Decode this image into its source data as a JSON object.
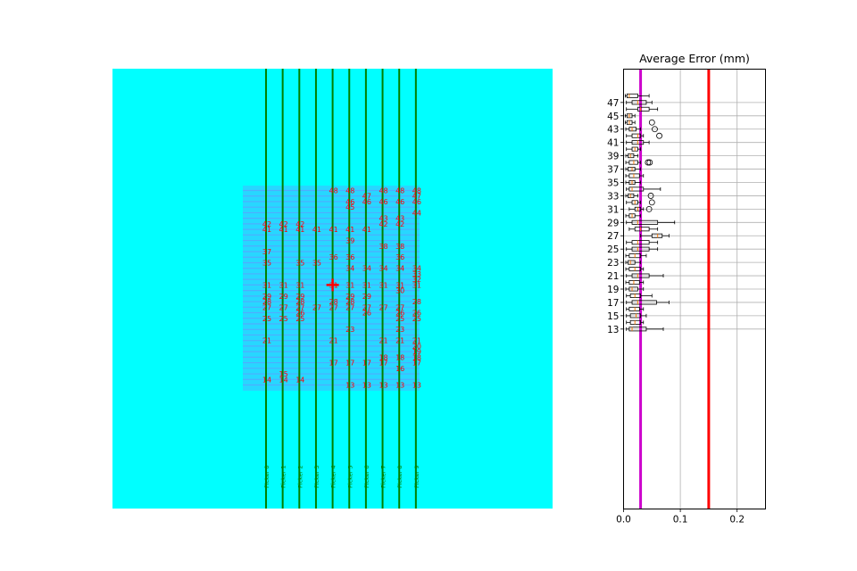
{
  "chart_data": [
    {
      "type": "heatmap",
      "title": "",
      "xlabel": "",
      "ylabel": "",
      "background_color": "#00ffff",
      "grid_color": "#6f8cff",
      "line_color": "#008000",
      "label_color": "#ff0000",
      "picker_labels": [
        "Picker 0",
        "Picker 1",
        "Picker 2",
        "Picker 3",
        "Picker 4",
        "Picker 5",
        "Picker 6",
        "Picker 7",
        "Picker 8",
        "Picker 9"
      ],
      "marker": {
        "symbol": "+",
        "color": "#ff0000",
        "column": 4,
        "row": 31
      },
      "points": [
        {
          "col": 4,
          "row": 48,
          "label": "48"
        },
        {
          "col": 5,
          "row": 48,
          "label": "48"
        },
        {
          "col": 7,
          "row": 48,
          "label": "48"
        },
        {
          "col": 8,
          "row": 48,
          "label": "48"
        },
        {
          "col": 9,
          "row": 48,
          "label": "48"
        },
        {
          "col": 6,
          "row": 47,
          "label": "47"
        },
        {
          "col": 9,
          "row": 47,
          "label": "47"
        },
        {
          "col": 5,
          "row": 46,
          "label": "46"
        },
        {
          "col": 6,
          "row": 46,
          "label": "46"
        },
        {
          "col": 7,
          "row": 46,
          "label": "46"
        },
        {
          "col": 8,
          "row": 46,
          "label": "46"
        },
        {
          "col": 9,
          "row": 46,
          "label": "46"
        },
        {
          "col": 5,
          "row": 45,
          "label": "45"
        },
        {
          "col": 9,
          "row": 44,
          "label": "44"
        },
        {
          "col": 7,
          "row": 43,
          "label": "43"
        },
        {
          "col": 8,
          "row": 43,
          "label": "43"
        },
        {
          "col": 0,
          "row": 42,
          "label": "42"
        },
        {
          "col": 1,
          "row": 42,
          "label": "42"
        },
        {
          "col": 2,
          "row": 42,
          "label": "42"
        },
        {
          "col": 7,
          "row": 42,
          "label": "42"
        },
        {
          "col": 8,
          "row": 42,
          "label": "42"
        },
        {
          "col": 0,
          "row": 41,
          "label": "41"
        },
        {
          "col": 1,
          "row": 41,
          "label": "41"
        },
        {
          "col": 2,
          "row": 41,
          "label": "41"
        },
        {
          "col": 3,
          "row": 41,
          "label": "41"
        },
        {
          "col": 4,
          "row": 41,
          "label": "41"
        },
        {
          "col": 5,
          "row": 41,
          "label": "41"
        },
        {
          "col": 6,
          "row": 41,
          "label": "41"
        },
        {
          "col": 5,
          "row": 39,
          "label": "39"
        },
        {
          "col": 7,
          "row": 38,
          "label": "38"
        },
        {
          "col": 8,
          "row": 38,
          "label": "38"
        },
        {
          "col": 0,
          "row": 37,
          "label": "37"
        },
        {
          "col": 4,
          "row": 36,
          "label": "36"
        },
        {
          "col": 5,
          "row": 36,
          "label": "36"
        },
        {
          "col": 8,
          "row": 36,
          "label": "36"
        },
        {
          "col": 0,
          "row": 35,
          "label": "35"
        },
        {
          "col": 2,
          "row": 35,
          "label": "35"
        },
        {
          "col": 3,
          "row": 35,
          "label": "35"
        },
        {
          "col": 5,
          "row": 34,
          "label": "34"
        },
        {
          "col": 6,
          "row": 34,
          "label": "34"
        },
        {
          "col": 7,
          "row": 34,
          "label": "34"
        },
        {
          "col": 8,
          "row": 34,
          "label": "34"
        },
        {
          "col": 9,
          "row": 34,
          "label": "34"
        },
        {
          "col": 9,
          "row": 33,
          "label": "33"
        },
        {
          "col": 9,
          "row": 32,
          "label": "32"
        },
        {
          "col": 0,
          "row": 31,
          "label": "31"
        },
        {
          "col": 1,
          "row": 31,
          "label": "31"
        },
        {
          "col": 2,
          "row": 31,
          "label": "31"
        },
        {
          "col": 4,
          "row": 31,
          "label": "31"
        },
        {
          "col": 5,
          "row": 31,
          "label": "31"
        },
        {
          "col": 6,
          "row": 31,
          "label": "31"
        },
        {
          "col": 7,
          "row": 31,
          "label": "31"
        },
        {
          "col": 8,
          "row": 31,
          "label": "31"
        },
        {
          "col": 9,
          "row": 31,
          "label": "31"
        },
        {
          "col": 8,
          "row": 30,
          "label": "30"
        },
        {
          "col": 0,
          "row": 29,
          "label": "29"
        },
        {
          "col": 1,
          "row": 29,
          "label": "29"
        },
        {
          "col": 2,
          "row": 29,
          "label": "29"
        },
        {
          "col": 5,
          "row": 29,
          "label": "29"
        },
        {
          "col": 6,
          "row": 29,
          "label": "29"
        },
        {
          "col": 0,
          "row": 28,
          "label": "28"
        },
        {
          "col": 2,
          "row": 28,
          "label": "28"
        },
        {
          "col": 4,
          "row": 28,
          "label": "28"
        },
        {
          "col": 5,
          "row": 28,
          "label": "28"
        },
        {
          "col": 9,
          "row": 28,
          "label": "28"
        },
        {
          "col": 0,
          "row": 27,
          "label": "27"
        },
        {
          "col": 1,
          "row": 27,
          "label": "27"
        },
        {
          "col": 2,
          "row": 27,
          "label": "27"
        },
        {
          "col": 3,
          "row": 27,
          "label": "27"
        },
        {
          "col": 4,
          "row": 27,
          "label": "27"
        },
        {
          "col": 5,
          "row": 27,
          "label": "27"
        },
        {
          "col": 6,
          "row": 27,
          "label": "27"
        },
        {
          "col": 7,
          "row": 27,
          "label": "27"
        },
        {
          "col": 8,
          "row": 27,
          "label": "27"
        },
        {
          "col": 2,
          "row": 26,
          "label": "26"
        },
        {
          "col": 6,
          "row": 26,
          "label": "26"
        },
        {
          "col": 8,
          "row": 26,
          "label": "26"
        },
        {
          "col": 9,
          "row": 26,
          "label": "26"
        },
        {
          "col": 0,
          "row": 25,
          "label": "25"
        },
        {
          "col": 1,
          "row": 25,
          "label": "25"
        },
        {
          "col": 2,
          "row": 25,
          "label": "25"
        },
        {
          "col": 8,
          "row": 25,
          "label": "25"
        },
        {
          "col": 9,
          "row": 25,
          "label": "25"
        },
        {
          "col": 5,
          "row": 23,
          "label": "23"
        },
        {
          "col": 8,
          "row": 23,
          "label": "23"
        },
        {
          "col": 0,
          "row": 21,
          "label": "21"
        },
        {
          "col": 4,
          "row": 21,
          "label": "21"
        },
        {
          "col": 7,
          "row": 21,
          "label": "21"
        },
        {
          "col": 8,
          "row": 21,
          "label": "21"
        },
        {
          "col": 9,
          "row": 21,
          "label": "21"
        },
        {
          "col": 9,
          "row": 20,
          "label": "20"
        },
        {
          "col": 9,
          "row": 19,
          "label": "19"
        },
        {
          "col": 7,
          "row": 18,
          "label": "18"
        },
        {
          "col": 8,
          "row": 18,
          "label": "18"
        },
        {
          "col": 9,
          "row": 18,
          "label": "18"
        },
        {
          "col": 4,
          "row": 17,
          "label": "17"
        },
        {
          "col": 5,
          "row": 17,
          "label": "17"
        },
        {
          "col": 6,
          "row": 17,
          "label": "17"
        },
        {
          "col": 7,
          "row": 17,
          "label": "17"
        },
        {
          "col": 9,
          "row": 17,
          "label": "17"
        },
        {
          "col": 8,
          "row": 16,
          "label": "16"
        },
        {
          "col": 1,
          "row": 15,
          "label": "15"
        },
        {
          "col": 0,
          "row": 14,
          "label": "14"
        },
        {
          "col": 1,
          "row": 14,
          "label": "14"
        },
        {
          "col": 2,
          "row": 14,
          "label": "14"
        },
        {
          "col": 5,
          "row": 13,
          "label": "13"
        },
        {
          "col": 6,
          "row": 13,
          "label": "13"
        },
        {
          "col": 7,
          "row": 13,
          "label": "13"
        },
        {
          "col": 8,
          "row": 13,
          "label": "13"
        },
        {
          "col": 9,
          "row": 13,
          "label": "13"
        }
      ]
    },
    {
      "type": "boxplot",
      "orientation": "horizontal",
      "title": "Average Error (mm)",
      "xlabel": "",
      "ylabel": "",
      "xlim": [
        0,
        0.25
      ],
      "xticks": [
        0,
        0.1,
        0.2
      ],
      "xtick_labels": [
        "0.0",
        "0.1",
        "0.2"
      ],
      "ylim": [
        -14,
        52
      ],
      "yticks": [
        13,
        15,
        17,
        19,
        21,
        23,
        25,
        27,
        29,
        31,
        33,
        35,
        37,
        39,
        41,
        43,
        45,
        47
      ],
      "ytick_labels": [
        "13",
        "15",
        "17",
        "19",
        "21",
        "23",
        "25",
        "27",
        "29",
        "31",
        "33",
        "35",
        "37",
        "39",
        "41",
        "43",
        "45",
        "47"
      ],
      "grid": true,
      "reference_lines": [
        {
          "x": 0.03,
          "color": "#cc00cc"
        },
        {
          "x": 0.15,
          "color": "#ff0000"
        }
      ],
      "boxes": [
        {
          "y": 13,
          "whislo": 0.005,
          "q1": 0.01,
          "med": 0.015,
          "q3": 0.04,
          "whishi": 0.07,
          "fliers": []
        },
        {
          "y": 14,
          "whislo": 0.005,
          "q1": 0.012,
          "med": 0.02,
          "q3": 0.03,
          "whishi": 0.035,
          "fliers": []
        },
        {
          "y": 15,
          "whislo": 0.005,
          "q1": 0.012,
          "med": 0.022,
          "q3": 0.03,
          "whishi": 0.04,
          "fliers": []
        },
        {
          "y": 16,
          "whislo": 0.005,
          "q1": 0.01,
          "med": 0.02,
          "q3": 0.028,
          "whishi": 0.035,
          "fliers": []
        },
        {
          "y": 17,
          "whislo": 0.005,
          "q1": 0.015,
          "med": 0.025,
          "q3": 0.058,
          "whishi": 0.08,
          "fliers": []
        },
        {
          "y": 18,
          "whislo": 0.005,
          "q1": 0.012,
          "med": 0.02,
          "q3": 0.03,
          "whishi": 0.05,
          "fliers": []
        },
        {
          "y": 19,
          "whislo": 0.004,
          "q1": 0.01,
          "med": 0.015,
          "q3": 0.025,
          "whishi": 0.035,
          "fliers": []
        },
        {
          "y": 20,
          "whislo": 0.004,
          "q1": 0.01,
          "med": 0.018,
          "q3": 0.028,
          "whishi": 0.035,
          "fliers": []
        },
        {
          "y": 21,
          "whislo": 0.005,
          "q1": 0.015,
          "med": 0.025,
          "q3": 0.045,
          "whishi": 0.07,
          "fliers": []
        },
        {
          "y": 22,
          "whislo": 0.004,
          "q1": 0.01,
          "med": 0.02,
          "q3": 0.03,
          "whishi": 0.035,
          "fliers": []
        },
        {
          "y": 23,
          "whislo": 0.004,
          "q1": 0.008,
          "med": 0.012,
          "q3": 0.02,
          "whishi": 0.03,
          "fliers": []
        },
        {
          "y": 24,
          "whislo": 0.004,
          "q1": 0.01,
          "med": 0.02,
          "q3": 0.03,
          "whishi": 0.04,
          "fliers": []
        },
        {
          "y": 25,
          "whislo": 0.005,
          "q1": 0.015,
          "med": 0.025,
          "q3": 0.045,
          "whishi": 0.06,
          "fliers": []
        },
        {
          "y": 26,
          "whislo": 0.005,
          "q1": 0.015,
          "med": 0.025,
          "q3": 0.045,
          "whishi": 0.06,
          "fliers": []
        },
        {
          "y": 27,
          "whislo": 0.03,
          "q1": 0.05,
          "med": 0.06,
          "q3": 0.068,
          "whishi": 0.08,
          "fliers": []
        },
        {
          "y": 28,
          "whislo": 0.01,
          "q1": 0.02,
          "med": 0.03,
          "q3": 0.045,
          "whishi": 0.06,
          "fliers": []
        },
        {
          "y": 29,
          "whislo": 0.005,
          "q1": 0.015,
          "med": 0.025,
          "q3": 0.06,
          "whishi": 0.09,
          "fliers": []
        },
        {
          "y": 30,
          "whislo": 0.004,
          "q1": 0.01,
          "med": 0.015,
          "q3": 0.02,
          "whishi": 0.03,
          "fliers": []
        },
        {
          "y": 31,
          "whislo": 0.01,
          "q1": 0.02,
          "med": 0.025,
          "q3": 0.03,
          "whishi": 0.035,
          "fliers": [
            0.045
          ]
        },
        {
          "y": 32,
          "whislo": 0.005,
          "q1": 0.015,
          "med": 0.02,
          "q3": 0.025,
          "whishi": 0.03,
          "fliers": [
            0.05
          ]
        },
        {
          "y": 33,
          "whislo": 0.004,
          "q1": 0.008,
          "med": 0.012,
          "q3": 0.018,
          "whishi": 0.025,
          "fliers": [
            0.048
          ]
        },
        {
          "y": 34,
          "whislo": 0.005,
          "q1": 0.01,
          "med": 0.015,
          "q3": 0.035,
          "whishi": 0.065,
          "fliers": []
        },
        {
          "y": 35,
          "whislo": 0.004,
          "q1": 0.01,
          "med": 0.015,
          "q3": 0.02,
          "whishi": 0.03,
          "fliers": []
        },
        {
          "y": 36,
          "whislo": 0.004,
          "q1": 0.01,
          "med": 0.018,
          "q3": 0.028,
          "whishi": 0.035,
          "fliers": []
        },
        {
          "y": 37,
          "whislo": 0.004,
          "q1": 0.008,
          "med": 0.015,
          "q3": 0.02,
          "whishi": 0.03,
          "fliers": []
        },
        {
          "y": 38,
          "whislo": 0.004,
          "q1": 0.01,
          "med": 0.018,
          "q3": 0.025,
          "whishi": 0.03,
          "fliers": [
            0.043,
            0.046
          ]
        },
        {
          "y": 39,
          "whislo": 0.004,
          "q1": 0.008,
          "med": 0.012,
          "q3": 0.018,
          "whishi": 0.025,
          "fliers": []
        },
        {
          "y": 40,
          "whislo": 0.005,
          "q1": 0.015,
          "med": 0.02,
          "q3": 0.025,
          "whishi": 0.03,
          "fliers": []
        },
        {
          "y": 41,
          "whislo": 0.005,
          "q1": 0.015,
          "med": 0.025,
          "q3": 0.035,
          "whishi": 0.045,
          "fliers": []
        },
        {
          "y": 42,
          "whislo": 0.005,
          "q1": 0.015,
          "med": 0.025,
          "q3": 0.03,
          "whishi": 0.035,
          "fliers": [
            0.063
          ]
        },
        {
          "y": 43,
          "whislo": 0.004,
          "q1": 0.01,
          "med": 0.015,
          "q3": 0.022,
          "whishi": 0.03,
          "fliers": [
            0.055
          ]
        },
        {
          "y": 44,
          "whislo": 0.003,
          "q1": 0.006,
          "med": 0.01,
          "q3": 0.015,
          "whishi": 0.02,
          "fliers": [
            0.05
          ]
        },
        {
          "y": 45,
          "whislo": 0.003,
          "q1": 0.006,
          "med": 0.01,
          "q3": 0.015,
          "whishi": 0.02,
          "fliers": []
        },
        {
          "y": 46,
          "whislo": 0.005,
          "q1": 0.025,
          "med": 0.03,
          "q3": 0.045,
          "whishi": 0.06,
          "fliers": []
        },
        {
          "y": 47,
          "whislo": 0.005,
          "q1": 0.015,
          "med": 0.025,
          "q3": 0.04,
          "whishi": 0.05,
          "fliers": []
        },
        {
          "y": 48,
          "whislo": 0.003,
          "q1": 0.006,
          "med": 0.01,
          "q3": 0.025,
          "whishi": 0.045,
          "fliers": []
        }
      ]
    }
  ]
}
